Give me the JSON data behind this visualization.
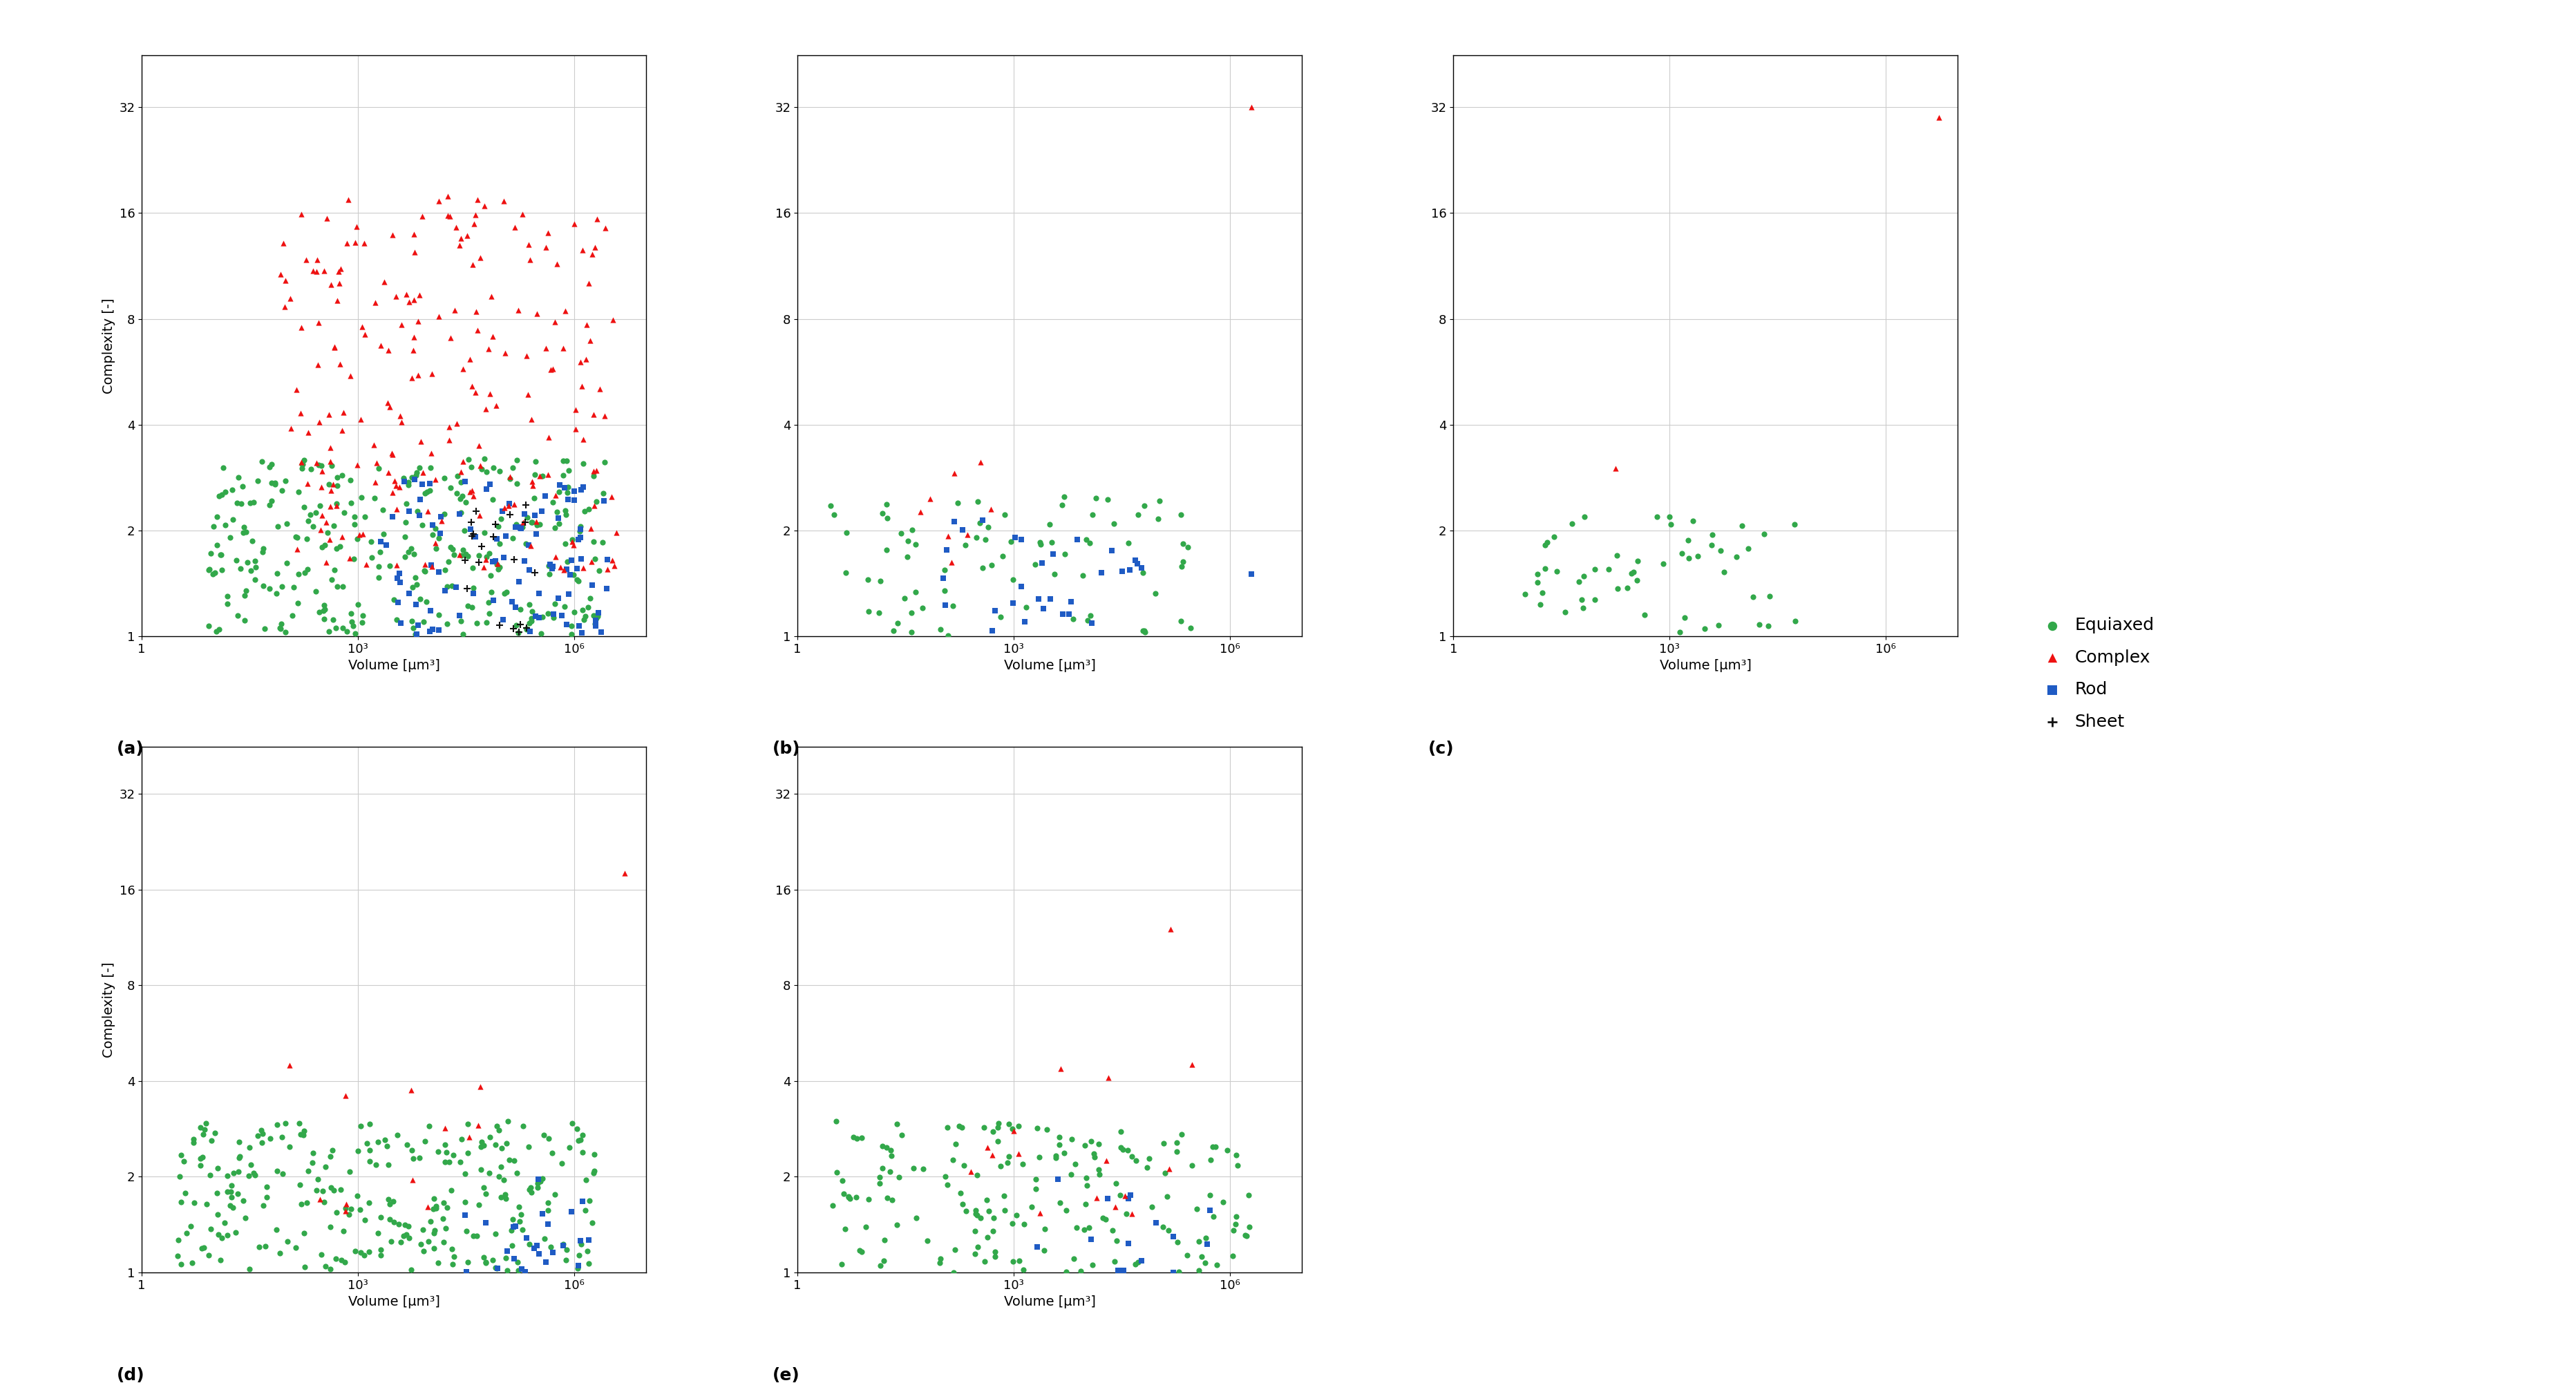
{
  "subplot_labels": [
    "(a)",
    "(b)",
    "(c)",
    "(d)",
    "(e)"
  ],
  "xlabel": "Volume [μm³]",
  "ylabel": "Complexity [-]",
  "ylim": [
    1,
    45
  ],
  "yticks": [
    1,
    2,
    4,
    8,
    16,
    32
  ],
  "xtick_labels": [
    "1",
    "10³",
    "10⁶"
  ],
  "xtick_vals": [
    1,
    1000,
    1000000
  ],
  "colors": {
    "equiaxed": "#32a84a",
    "complex": "#ee1111",
    "rod": "#1f5bc4",
    "sheet": "#111111"
  },
  "marker_size": 35,
  "legend_labels": [
    "Equiaxed",
    "Complex",
    "Rod",
    "Sheet"
  ],
  "background_color": "#ffffff",
  "grid_color": "#cccccc",
  "font_size_label": 14,
  "font_size_tick": 13,
  "font_size_legend": 18,
  "font_size_sublabel": 18
}
